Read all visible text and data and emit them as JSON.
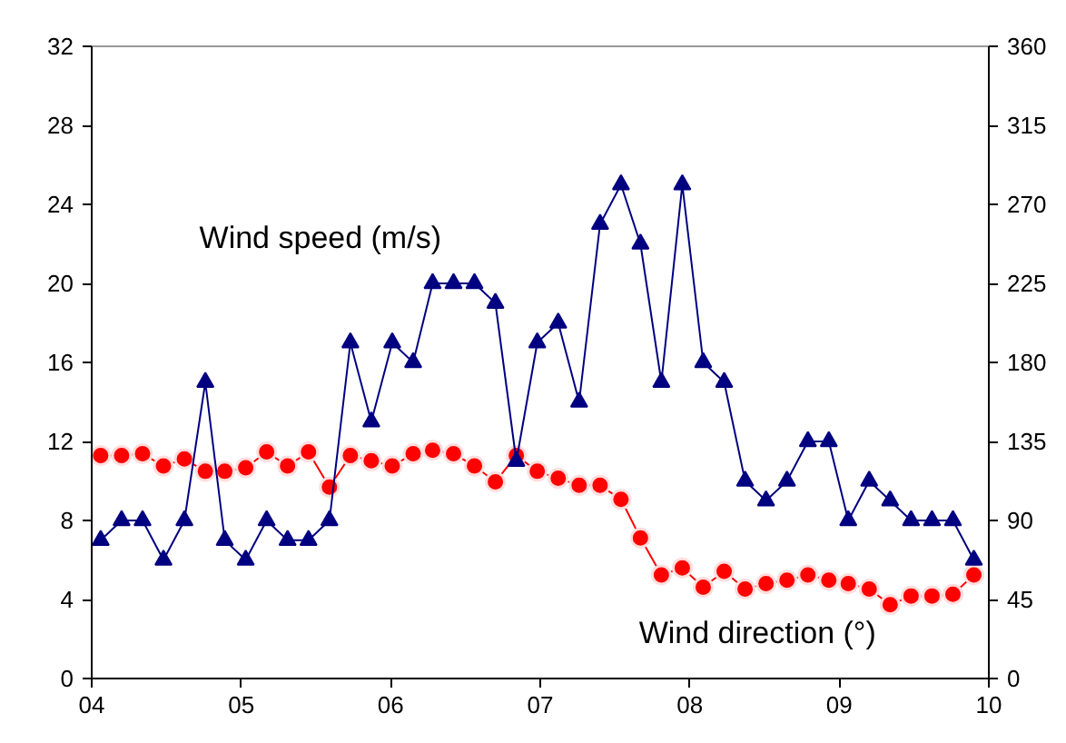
{
  "chart_data": {
    "type": "line",
    "x": [
      4.06,
      4.2,
      4.34,
      4.48,
      4.62,
      4.76,
      4.89,
      5.03,
      5.17,
      5.31,
      5.45,
      5.59,
      5.73,
      5.87,
      6.01,
      6.15,
      6.28,
      6.42,
      6.56,
      6.7,
      6.84,
      6.98,
      7.12,
      7.26,
      7.4,
      7.54,
      7.67,
      7.81,
      7.95,
      8.09,
      8.23,
      8.37,
      8.51,
      8.65,
      8.79,
      8.93,
      9.06,
      9.2,
      9.34,
      9.48,
      9.62,
      9.76,
      9.9
    ],
    "series": [
      {
        "name": "Wind speed (m/s)",
        "color": "#000080",
        "marker": "triangle",
        "values": [
          7,
          8,
          8,
          6,
          8,
          15,
          7,
          6,
          8,
          7,
          7,
          8,
          17,
          13,
          17,
          16,
          20,
          20,
          20,
          19,
          11,
          17,
          18,
          14,
          23,
          25,
          22,
          15,
          25,
          16,
          15,
          10,
          9,
          10,
          12,
          12,
          8,
          10,
          9,
          8,
          8,
          8,
          6
        ]
      },
      {
        "name": "Wind direction (°)",
        "color": "#ff0000",
        "marker": "circle",
        "axis": "y2",
        "values": [
          127,
          127,
          128,
          121,
          125,
          118,
          118,
          120,
          129,
          121,
          129,
          109,
          127,
          124,
          121,
          128,
          130,
          128,
          121,
          112,
          127,
          118,
          114,
          110,
          110,
          102,
          80,
          59,
          63,
          52,
          61,
          51,
          54,
          56,
          59,
          56,
          54,
          51,
          42,
          47,
          47,
          48,
          59
        ]
      }
    ],
    "xlim": [
      4,
      10
    ],
    "xticks": [
      {
        "value": 4,
        "label": "04"
      },
      {
        "value": 5,
        "label": "05"
      },
      {
        "value": 6,
        "label": "06"
      },
      {
        "value": 7,
        "label": "07"
      },
      {
        "value": 8,
        "label": "08"
      },
      {
        "value": 9,
        "label": "09"
      },
      {
        "value": 10,
        "label": "10"
      }
    ],
    "ylim": [
      0,
      32
    ],
    "yticks": [
      0,
      4,
      8,
      12,
      16,
      20,
      24,
      28,
      32
    ],
    "y2lim": [
      0,
      360
    ],
    "y2ticks": [
      0,
      45,
      90,
      135,
      180,
      225,
      270,
      315,
      360
    ],
    "grid": false,
    "line_style": "solid"
  }
}
